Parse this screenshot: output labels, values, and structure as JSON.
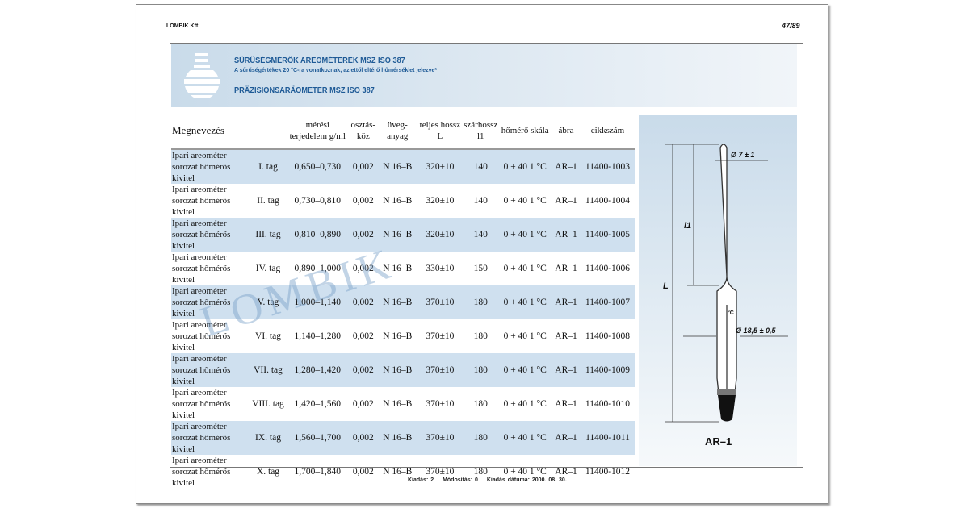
{
  "header": {
    "company": "LOMBIK Kft.",
    "page_number": "47/89"
  },
  "band": {
    "title": "SŰRŰSÉGMÉRŐK AREOMÉTEREK MSZ ISO 387",
    "subtitle": "A sűrűségértékek 20 °C-ra vonatkoznak, az ettől eltérő hőmérséklet jelezve*",
    "title_de": "PRÄZISIONSARÄOMETER MSZ ISO 387"
  },
  "table": {
    "headers": [
      "Megnevezés",
      "",
      "mérési terjedelem g/ml",
      "osztás-köz",
      "üveg-anyag",
      "teljes hossz L",
      "szárhossz l1",
      "hőmérő skála",
      "ábra",
      "cikkszám"
    ],
    "rows": [
      {
        "name": "Ipari areométer sorozat hőmérős kivitel",
        "tag": "I. tag",
        "range": "0,650–0,730",
        "div": "0,002",
        "glass": "N 16–B",
        "L": "320±10",
        "l1": "140",
        "scale": "0 + 40  1 °C",
        "fig": "AR–1",
        "code": "11400-1003"
      },
      {
        "name": "Ipari areométer sorozat hőmérős kivitel",
        "tag": "II. tag",
        "range": "0,730–0,810",
        "div": "0,002",
        "glass": "N 16–B",
        "L": "320±10",
        "l1": "140",
        "scale": "0 + 40  1 °C",
        "fig": "AR–1",
        "code": "11400-1004"
      },
      {
        "name": "Ipari areométer sorozat hőmérős kivitel",
        "tag": "III. tag",
        "range": "0,810–0,890",
        "div": "0,002",
        "glass": "N 16–B",
        "L": "320±10",
        "l1": "140",
        "scale": "0 + 40  1 °C",
        "fig": "AR–1",
        "code": "11400-1005"
      },
      {
        "name": "Ipari areométer sorozat hőmérős kivitel",
        "tag": "IV. tag",
        "range": "0,890–1,000",
        "div": "0,002",
        "glass": "N 16–B",
        "L": "330±10",
        "l1": "150",
        "scale": "0 + 40  1 °C",
        "fig": "AR–1",
        "code": "11400-1006"
      },
      {
        "name": "Ipari areométer sorozat hőmérős kivitel",
        "tag": "V. tag",
        "range": "1,000–1,140",
        "div": "0,002",
        "glass": "N 16–B",
        "L": "370±10",
        "l1": "180",
        "scale": "0 + 40  1 °C",
        "fig": "AR–1",
        "code": "11400-1007"
      },
      {
        "name": "Ipari areométer sorozat hőmérős kivitel",
        "tag": "VI. tag",
        "range": "1,140–1,280",
        "div": "0,002",
        "glass": "N 16–B",
        "L": "370±10",
        "l1": "180",
        "scale": "0 + 40  1 °C",
        "fig": "AR–1",
        "code": "11400-1008"
      },
      {
        "name": "Ipari areométer sorozat hőmérős kivitel",
        "tag": "VII. tag",
        "range": "1,280–1,420",
        "div": "0,002",
        "glass": "N 16–B",
        "L": "370±10",
        "l1": "180",
        "scale": "0 + 40  1 °C",
        "fig": "AR–1",
        "code": "11400-1009"
      },
      {
        "name": "Ipari areométer sorozat hőmérős kivitel",
        "tag": "VIII. tag",
        "range": "1,420–1,560",
        "div": "0,002",
        "glass": "N 16–B",
        "L": "370±10",
        "l1": "180",
        "scale": "0 + 40  1 °C",
        "fig": "AR–1",
        "code": "11400-1010"
      },
      {
        "name": "Ipari areométer sorozat hőmérős kivitel",
        "tag": "IX. tag",
        "range": "1,560–1,700",
        "div": "0,002",
        "glass": "N 16–B",
        "L": "370±10",
        "l1": "180",
        "scale": "0 + 40  1 °C",
        "fig": "AR–1",
        "code": "11400-1011"
      },
      {
        "name": "Ipari areométer sorozat hőmérős kivitel",
        "tag": "X. tag",
        "range": "1,700–1,840",
        "div": "0,002",
        "glass": "N 16–B",
        "L": "370±10",
        "l1": "180",
        "scale": "0 + 40  1 °C",
        "fig": "AR–1",
        "code": "11400-1012"
      }
    ]
  },
  "figure": {
    "label": "AR–1",
    "dim_top": "Ø 7 ± 1",
    "dim_body": "Ø 18,5 ± 0,5",
    "dim_L": "L",
    "dim_l1": "l1",
    "unit": "°C"
  },
  "watermark": "LOMBIK",
  "footer": {
    "edition": "Kiadás: 2",
    "modification": "Módosítás: 0",
    "date": "Kiadás dátuma: 2000. 08. 30."
  },
  "colors": {
    "accent": "#1e5a96",
    "row_alt": "#cfe0ef"
  }
}
